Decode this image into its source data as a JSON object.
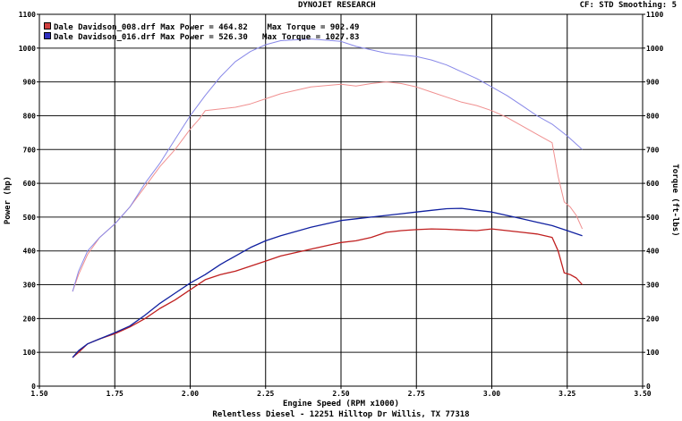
{
  "header": {
    "title": "DYNOJET RESEARCH",
    "cf_info": "CF: STD  Smoothing: 5"
  },
  "footer": "Relentless Diesel - 12251 Hilltop Dr Willis, TX  77318",
  "legend": [
    {
      "file": "Dale Davidson_008.drf",
      "max_power": "Max Power = 464.82",
      "max_torque": "Max Torque = 902.49",
      "color": "#d04040"
    },
    {
      "file": "Dale Davidson_016.drf",
      "max_power": "Max Power = 526.30",
      "max_torque": "Max Torque = 1027.83",
      "color": "#3030c0"
    }
  ],
  "chart_data": {
    "type": "line",
    "xlabel": "Engine Speed (RPM x1000)",
    "ylabel_left": "Power (hp)",
    "ylabel_right": "Torque (ft-lbs)",
    "xlim": [
      1.5,
      3.5
    ],
    "ylim": [
      0,
      1100
    ],
    "xticks": [
      "1.50",
      "1.75",
      "2.00",
      "2.25",
      "2.50",
      "2.75",
      "3.00",
      "3.25",
      "3.50"
    ],
    "yticks": [
      "0",
      "100",
      "200",
      "300",
      "400",
      "500",
      "600",
      "700",
      "800",
      "900",
      "1000",
      "1100"
    ],
    "grid": false,
    "series": [
      {
        "name": "Dale Davidson_008.drf",
        "kind": "torque",
        "color": "#f09090",
        "x": [
          1.61,
          1.63,
          1.66,
          1.7,
          1.75,
          1.8,
          1.85,
          1.9,
          1.95,
          2.0,
          2.03,
          2.05,
          2.1,
          2.15,
          2.2,
          2.25,
          2.3,
          2.4,
          2.5,
          2.55,
          2.6,
          2.65,
          2.7,
          2.75,
          2.8,
          2.85,
          2.9,
          2.95,
          3.0,
          3.05,
          3.1,
          3.15,
          3.2,
          3.22,
          3.24,
          3.26,
          3.28,
          3.3
        ],
        "y": [
          280,
          330,
          390,
          440,
          480,
          530,
          590,
          650,
          700,
          760,
          790,
          815,
          820,
          825,
          835,
          850,
          865,
          885,
          893,
          888,
          895,
          900,
          895,
          885,
          870,
          855,
          840,
          830,
          815,
          795,
          770,
          745,
          720,
          620,
          545,
          530,
          505,
          465
        ]
      },
      {
        "name": "Dale Davidson_016.drf",
        "kind": "torque",
        "color": "#8888e8",
        "x": [
          1.61,
          1.63,
          1.66,
          1.7,
          1.75,
          1.8,
          1.85,
          1.9,
          1.95,
          2.0,
          2.05,
          2.1,
          2.15,
          2.2,
          2.25,
          2.3,
          2.4,
          2.5,
          2.55,
          2.6,
          2.65,
          2.7,
          2.75,
          2.8,
          2.85,
          2.9,
          2.95,
          3.0,
          3.05,
          3.1,
          3.15,
          3.2,
          3.25,
          3.3
        ],
        "y": [
          280,
          340,
          400,
          440,
          480,
          530,
          600,
          660,
          730,
          800,
          860,
          915,
          960,
          990,
          1010,
          1022,
          1027,
          1020,
          1005,
          995,
          985,
          980,
          975,
          965,
          950,
          930,
          910,
          885,
          860,
          830,
          800,
          775,
          740,
          700
        ]
      },
      {
        "name": "Dale Davidson_008.drf",
        "kind": "power",
        "color": "#c02020",
        "x": [
          1.61,
          1.63,
          1.66,
          1.7,
          1.75,
          1.8,
          1.85,
          1.9,
          1.95,
          2.0,
          2.05,
          2.1,
          2.15,
          2.2,
          2.25,
          2.3,
          2.4,
          2.5,
          2.55,
          2.6,
          2.65,
          2.7,
          2.75,
          2.8,
          2.85,
          2.9,
          2.95,
          3.0,
          3.05,
          3.1,
          3.15,
          3.2,
          3.22,
          3.24,
          3.26,
          3.28,
          3.3
        ],
        "y": [
          85,
          100,
          125,
          140,
          155,
          175,
          200,
          230,
          255,
          285,
          315,
          330,
          340,
          355,
          370,
          385,
          405,
          425,
          430,
          440,
          455,
          460,
          463,
          465,
          464,
          462,
          460,
          465,
          460,
          455,
          450,
          440,
          400,
          335,
          330,
          320,
          300
        ]
      },
      {
        "name": "Dale Davidson_016.drf",
        "kind": "power",
        "color": "#1020a0",
        "x": [
          1.61,
          1.63,
          1.66,
          1.7,
          1.75,
          1.8,
          1.85,
          1.9,
          1.95,
          2.0,
          2.05,
          2.1,
          2.15,
          2.2,
          2.25,
          2.3,
          2.4,
          2.5,
          2.55,
          2.6,
          2.65,
          2.7,
          2.75,
          2.8,
          2.85,
          2.9,
          2.95,
          3.0,
          3.05,
          3.1,
          3.15,
          3.2,
          3.25,
          3.3
        ],
        "y": [
          85,
          105,
          125,
          140,
          158,
          178,
          210,
          245,
          275,
          305,
          330,
          360,
          385,
          410,
          430,
          445,
          470,
          490,
          495,
          500,
          505,
          510,
          515,
          520,
          525,
          526,
          520,
          515,
          505,
          495,
          485,
          475,
          460,
          445
        ]
      }
    ]
  }
}
